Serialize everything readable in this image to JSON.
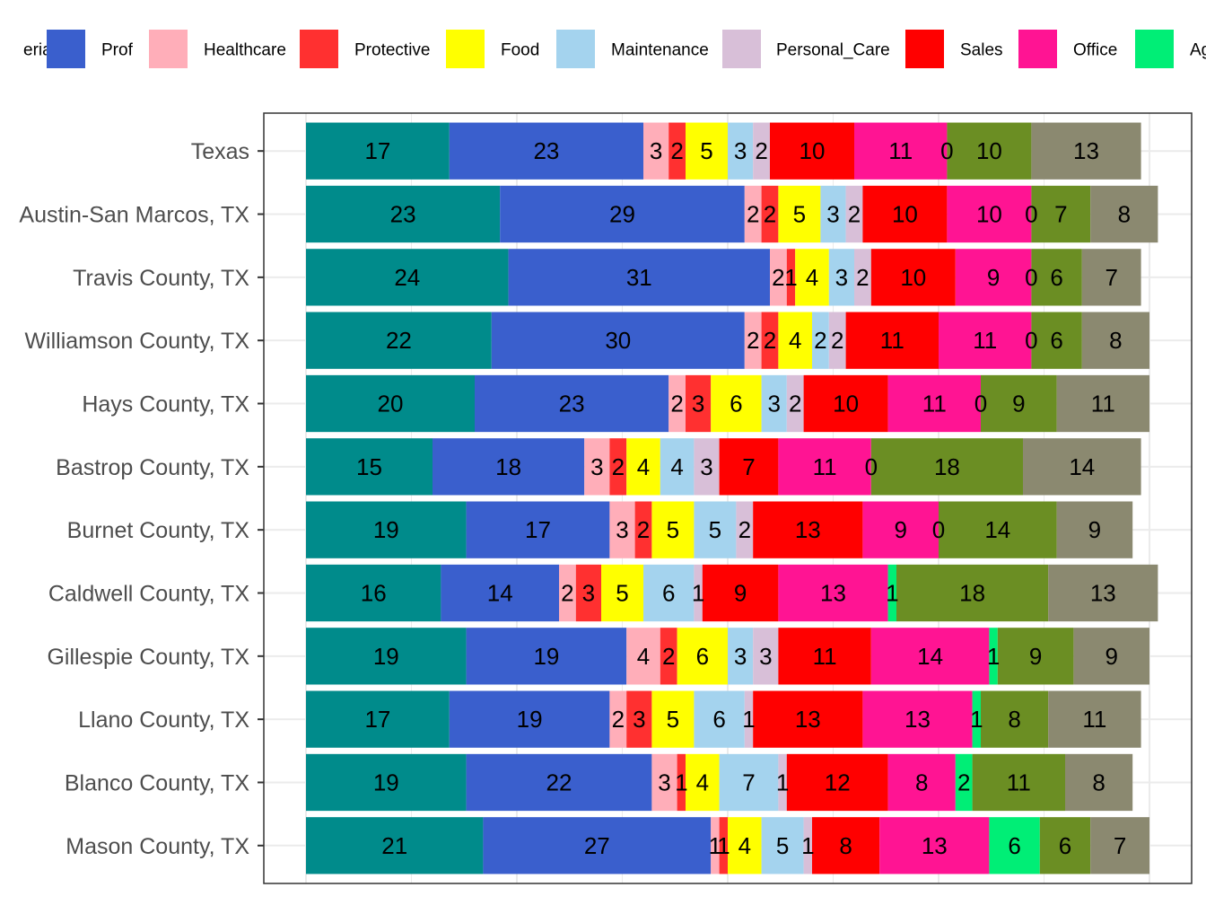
{
  "chart_data": {
    "type": "bar",
    "orientation": "horizontal",
    "stacked": true,
    "title": "",
    "xlabel": "",
    "ylabel": "",
    "xlim": [
      0,
      100
    ],
    "grid": true,
    "legend_position": "top",
    "legend_labels_visible": [
      "erial",
      "Prof",
      "Healthcare",
      "Protective",
      "Food",
      "Maintenance",
      "Personal_Care",
      "Sales",
      "Office",
      "Ag"
    ],
    "categories": [
      "Texas",
      "Austin-San Marcos, TX",
      "Travis County, TX",
      "Williamson County, TX",
      "Hays County, TX",
      "Bastrop County, TX",
      "Burnet County, TX",
      "Caldwell County, TX",
      "Gillespie County, TX",
      "Llano County, TX",
      "Blanco County, TX",
      "Mason County, TX"
    ],
    "series": [
      {
        "color": "#008B8B",
        "values": [
          17,
          23,
          24,
          22,
          20,
          15,
          19,
          16,
          19,
          17,
          19,
          21
        ]
      },
      {
        "name": "Prof",
        "color": "#3A5FCD",
        "values": [
          23,
          29,
          31,
          30,
          23,
          18,
          17,
          14,
          19,
          19,
          22,
          27
        ]
      },
      {
        "name": "Healthcare",
        "color": "#FFAEB9",
        "values": [
          3,
          2,
          2,
          2,
          2,
          3,
          3,
          2,
          4,
          2,
          3,
          1
        ]
      },
      {
        "name": "Protective",
        "color": "#FF3030",
        "values": [
          2,
          2,
          1,
          2,
          3,
          2,
          2,
          3,
          2,
          3,
          1,
          1
        ]
      },
      {
        "name": "Food",
        "color": "#FFFF00",
        "values": [
          5,
          5,
          4,
          4,
          6,
          4,
          5,
          5,
          6,
          5,
          4,
          4
        ]
      },
      {
        "name": "Maintenance",
        "color": "#A4D3EE",
        "values": [
          3,
          3,
          3,
          2,
          3,
          4,
          5,
          6,
          3,
          6,
          7,
          5
        ]
      },
      {
        "name": "Personal_Care",
        "color": "#D8BFD8",
        "values": [
          2,
          2,
          2,
          2,
          2,
          3,
          2,
          1,
          3,
          1,
          1,
          1
        ]
      },
      {
        "name": "Sales",
        "color": "#FF0000",
        "values": [
          10,
          10,
          10,
          11,
          10,
          7,
          13,
          9,
          11,
          13,
          12,
          8
        ]
      },
      {
        "name": "Office",
        "color": "#FF1493",
        "values": [
          11,
          10,
          9,
          11,
          11,
          11,
          9,
          13,
          14,
          13,
          8,
          13
        ]
      },
      {
        "color": "#00EE76",
        "values": [
          0,
          0,
          0,
          0,
          0,
          0,
          0,
          1,
          1,
          1,
          2,
          6
        ]
      },
      {
        "color": "#6B8E23",
        "values": [
          10,
          7,
          6,
          6,
          9,
          18,
          14,
          18,
          9,
          8,
          11,
          6
        ]
      },
      {
        "color": "#8B8970",
        "values": [
          13,
          8,
          7,
          8,
          11,
          14,
          9,
          13,
          9,
          11,
          8,
          7
        ]
      }
    ]
  }
}
